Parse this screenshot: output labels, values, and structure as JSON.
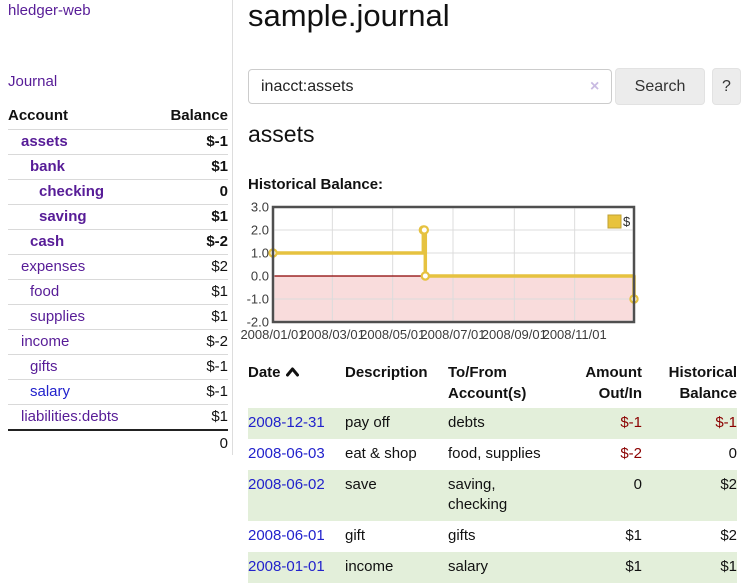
{
  "colors": {
    "link_purple": "#571c97",
    "link_blue": "#2222cc",
    "negative": "#8b0000",
    "negative_muted": "#c27474",
    "row_green": "#e3efda",
    "series_yellow": "#e6c240",
    "chart_negative_bg": "#f9dcdc",
    "zero_line": "#8b0000",
    "button_bg": "#ececec"
  },
  "app": {
    "title": "hledger-web"
  },
  "sidebar": {
    "journal_link": "Journal",
    "table": {
      "headers": [
        "Account",
        "Balance"
      ],
      "rows": [
        {
          "account": "assets",
          "depth": 1,
          "bold": true,
          "balance": "$-1",
          "balance_style": "neg"
        },
        {
          "account": "bank",
          "depth": 2,
          "bold": true,
          "balance": "$1",
          "balance_style": "pos"
        },
        {
          "account": "checking",
          "depth": 3,
          "bold": true,
          "balance": "0",
          "balance_style": "pos"
        },
        {
          "account": "saving",
          "depth": 3,
          "bold": true,
          "balance": "$1",
          "balance_style": "pos"
        },
        {
          "account": "cash",
          "depth": 2,
          "bold": true,
          "balance": "$-2",
          "balance_style": "neg"
        },
        {
          "account": "expenses",
          "depth": 1,
          "bold": false,
          "balance": "$2",
          "balance_style": "pos"
        },
        {
          "account": "food",
          "depth": 2,
          "bold": false,
          "balance": "$1",
          "balance_style": "pos"
        },
        {
          "account": "supplies",
          "depth": 2,
          "bold": false,
          "balance": "$1",
          "balance_style": "pos"
        },
        {
          "account": "income",
          "depth": 1,
          "bold": false,
          "balance": "$-2",
          "balance_style": "neg-muted"
        },
        {
          "account": "gifts",
          "depth": 2,
          "bold": false,
          "balance": "$-1",
          "balance_style": "neg-muted"
        },
        {
          "account": "salary",
          "depth": 2,
          "bold": false,
          "balance": "$-1",
          "balance_style": "neg-muted",
          "link_style": "unvisited"
        },
        {
          "account": "liabilities:debts",
          "depth": 1,
          "bold": false,
          "balance": "$1",
          "balance_style": "pos"
        }
      ],
      "total": "0"
    }
  },
  "main": {
    "title": "sample.journal",
    "search": {
      "value": "inacct:assets",
      "clear_icon": "×",
      "button_label": "Search",
      "help_label": "?"
    },
    "account_heading": "assets",
    "chart_label": "Historical Balance:"
  },
  "chart_data": {
    "type": "line",
    "step": true,
    "title": "Historical Balance:",
    "series": [
      {
        "name": "$",
        "color": "#e6c240",
        "points": [
          [
            "2008-01-01",
            1
          ],
          [
            "2008-06-01",
            2
          ],
          [
            "2008-06-02",
            2
          ],
          [
            "2008-06-03",
            0
          ],
          [
            "2008-12-31",
            -1
          ]
        ]
      }
    ],
    "x_tick_labels": [
      "2008/01/01",
      "2008/03/01",
      "2008/05/01",
      "2008/07/01",
      "2008/09/01",
      "2008/11/01"
    ],
    "y_ticks": [
      3.0,
      2.0,
      1.0,
      0.0,
      -1.0,
      -2.0
    ],
    "ylim": [
      -2,
      3
    ],
    "xlim": [
      "2008-01-01",
      "2008-12-31"
    ],
    "grid": true,
    "legend": {
      "label": "$",
      "position": "top-right"
    },
    "negative_region_color": "#f9dcdc",
    "zero_line_color": "#8b0000"
  },
  "register": {
    "columns": [
      {
        "label": "Date",
        "align": "left",
        "sorted_asc": true
      },
      {
        "label": "Description",
        "align": "left"
      },
      {
        "label": "To/From Account(s)",
        "align": "left"
      },
      {
        "label": "Amount Out/In",
        "align": "right"
      },
      {
        "label": "Historical Balance",
        "align": "right"
      }
    ],
    "rows": [
      {
        "date": "2008-12-31",
        "description": "pay off",
        "accounts": "debts",
        "amount": "$-1",
        "amount_neg": true,
        "balance": "$-1",
        "balance_neg": true
      },
      {
        "date": "2008-06-03",
        "description": "eat & shop",
        "accounts": "food, supplies",
        "amount": "$-2",
        "amount_neg": true,
        "balance": "0",
        "balance_neg": false
      },
      {
        "date": "2008-06-02",
        "description": "save",
        "accounts": "saving, checking",
        "amount": "0",
        "amount_neg": false,
        "balance": "$2",
        "balance_neg": false
      },
      {
        "date": "2008-06-01",
        "description": "gift",
        "accounts": "gifts",
        "amount": "$1",
        "amount_neg": false,
        "balance": "$2",
        "balance_neg": false
      },
      {
        "date": "2008-01-01",
        "description": "income",
        "accounts": "salary",
        "amount": "$1",
        "amount_neg": false,
        "balance": "$1",
        "balance_neg": false
      }
    ]
  }
}
